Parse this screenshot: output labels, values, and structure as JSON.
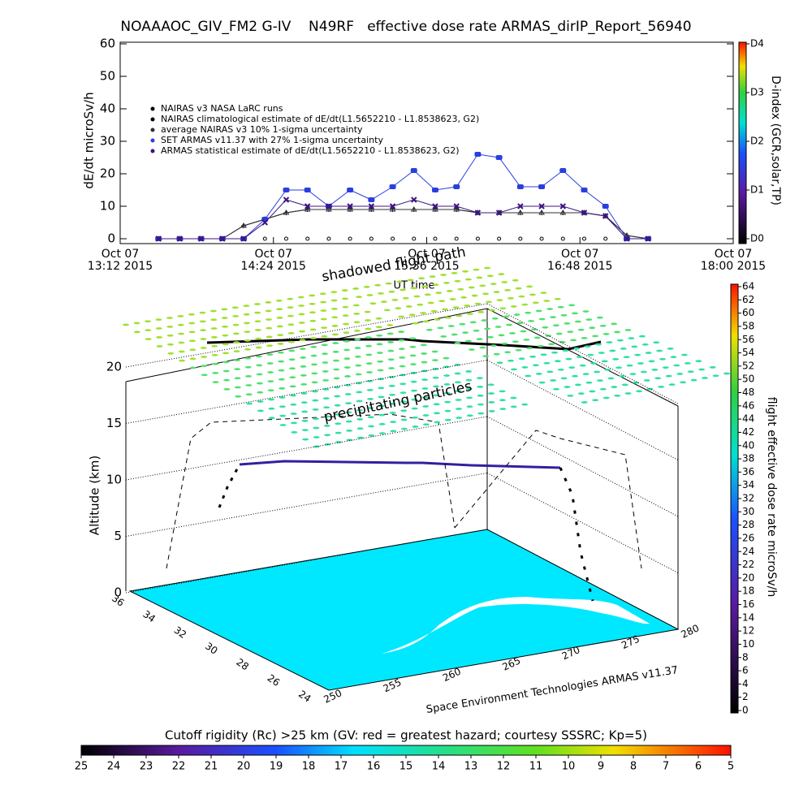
{
  "chart_data": [
    {
      "type": "line",
      "title": "NOAAAOC_GIV_FM2 G-IV    N49RF   effective dose rate ARMAS_dirIP_Report_56940",
      "ylabel": "dE/dt microSv/h",
      "x": [
        "2015-10-07 13:30",
        "2015-10-07 13:40",
        "2015-10-07 13:50",
        "2015-10-07 14:00",
        "2015-10-07 14:10",
        "2015-10-07 14:20",
        "2015-10-07 14:30",
        "2015-10-07 14:40",
        "2015-10-07 14:50",
        "2015-10-07 15:00",
        "2015-10-07 15:10",
        "2015-10-07 15:20",
        "2015-10-07 15:30",
        "2015-10-07 15:40",
        "2015-10-07 15:50",
        "2015-10-07 16:00",
        "2015-10-07 16:10",
        "2015-10-07 16:20",
        "2015-10-07 16:30",
        "2015-10-07 16:40",
        "2015-10-07 16:50",
        "2015-10-07 17:00",
        "2015-10-07 17:10",
        "2015-10-07 17:20"
      ],
      "series": [
        {
          "name": "NAIRAS v3 NASA LaRC runs",
          "color": "#000000",
          "marker": "o",
          "values": [
            0,
            0,
            0,
            0,
            0,
            0,
            0,
            0,
            0,
            0,
            0,
            0,
            0,
            0,
            0,
            0,
            0,
            0,
            0,
            0,
            0,
            0,
            0,
            0
          ]
        },
        {
          "name": "NAIRAS climatological estimate of dE/dt(L1.5652210 - L1.8538623, G2)",
          "color": "#000000",
          "marker": "+",
          "values": [
            0,
            0,
            0,
            0,
            4,
            6,
            8,
            9,
            9,
            9,
            9,
            9,
            9,
            9,
            9,
            8,
            8,
            8,
            8,
            8,
            8,
            7,
            1,
            0
          ]
        },
        {
          "name": "average NAIRAS v3 10% 1-sigma uncertainty",
          "color": "#303030",
          "marker": "^",
          "values": [
            0,
            0,
            0,
            0,
            4,
            6,
            8,
            9,
            9,
            9,
            9,
            9,
            9,
            9,
            9,
            8,
            8,
            8,
            8,
            8,
            8,
            7,
            1,
            0
          ]
        },
        {
          "name": "SET ARMAS v11.37 with 27% 1-sigma uncertainty",
          "color": "#2a3ee0",
          "marker": "s",
          "values": [
            0,
            0,
            0,
            0,
            0,
            6,
            15,
            15,
            10,
            15,
            12,
            16,
            21,
            15,
            16,
            26,
            25,
            16,
            16,
            21,
            15,
            10,
            0,
            0
          ]
        },
        {
          "name": "ARMAS statistical estimate of dE/dt(L1.5652210 - L1.8538623, G2)",
          "color": "#3c1480",
          "marker": "x",
          "values": [
            0,
            0,
            0,
            0,
            0,
            5,
            12,
            10,
            10,
            10,
            10,
            10,
            12,
            10,
            10,
            8,
            8,
            10,
            10,
            10,
            8,
            7,
            0,
            0
          ]
        }
      ],
      "xlim": [
        "2015-10-07 13:12",
        "2015-10-07 18:00"
      ],
      "xticks": [
        {
          "value": "2015-10-07 13:12",
          "label": "Oct 07\n13:12 2015"
        },
        {
          "value": "2015-10-07 14:24",
          "label": "Oct 07\n14:24 2015"
        },
        {
          "value": "2015-10-07 15:36",
          "label": "Oct 07\n15:36 2015"
        },
        {
          "value": "2015-10-07 16:48",
          "label": "Oct 07\n16:48 2015"
        },
        {
          "value": "2015-10-07 18:00",
          "label": "Oct 07\n18:00 2015"
        }
      ],
      "xlabel": "UT time",
      "ylim": [
        0,
        60
      ],
      "yticks": [
        0,
        10,
        20,
        30,
        40,
        50,
        60
      ],
      "colorbar": {
        "label": "D-index (GCR,solar,TP)",
        "lim": [
          0,
          4
        ],
        "ticks": [
          {
            "value": 0,
            "label": "D0"
          },
          {
            "value": 1,
            "label": "D1"
          },
          {
            "value": 2,
            "label": "D2"
          },
          {
            "value": 3,
            "label": "D3"
          },
          {
            "value": 4,
            "label": "D4"
          }
        ]
      }
    },
    {
      "type": "scene3d",
      "annotations": [
        "shadowed flight path",
        "precipitating particles",
        "Space Environment Technologies ARMAS v11.37"
      ],
      "zlabel": "Altitude (km)",
      "zlim": [
        0,
        20
      ],
      "zticks": [
        0,
        5,
        10,
        15,
        20
      ],
      "lat_ticks": [
        36,
        34,
        32,
        30,
        28,
        26,
        24
      ],
      "lon_ticks": [
        250,
        255,
        260,
        265,
        270,
        275,
        280
      ],
      "colorbar": {
        "label": "flight effective dose rate microSv/h",
        "lim": [
          0,
          64
        ],
        "ticks": [
          0,
          2,
          4,
          6,
          8,
          10,
          12,
          14,
          16,
          18,
          20,
          22,
          24,
          26,
          28,
          30,
          32,
          34,
          36,
          38,
          40,
          42,
          44,
          46,
          48,
          50,
          52,
          54,
          56,
          58,
          60,
          62,
          64
        ]
      },
      "colorbar2": {
        "label": "Cutoff rigidity (Rc) >25 km (GV: red = greatest hazard; courtesy SSSRC; Kp=5)",
        "lim": [
          25,
          5
        ],
        "ticks": [
          25,
          24,
          23,
          22,
          21,
          20,
          19,
          18,
          17,
          16,
          15,
          14,
          13,
          12,
          11,
          10,
          9,
          8,
          7,
          6,
          5
        ]
      }
    }
  ]
}
